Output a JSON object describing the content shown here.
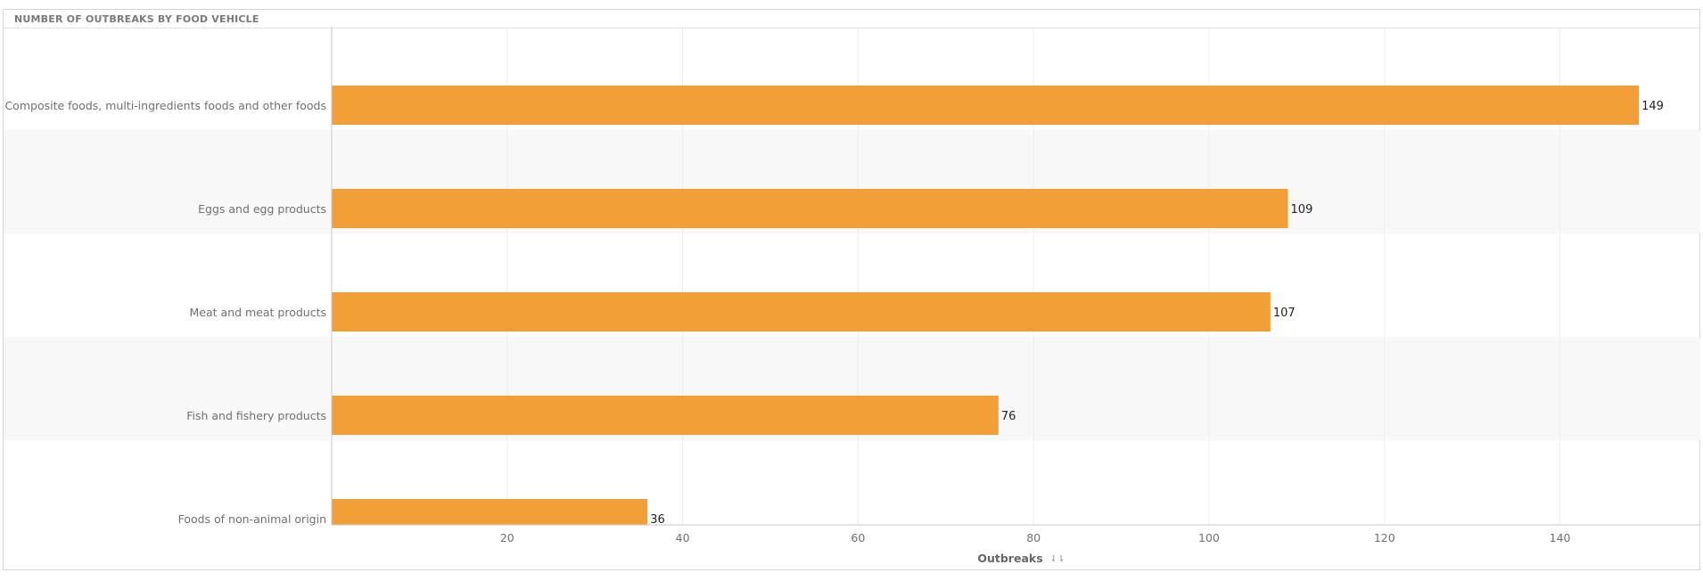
{
  "panel": {
    "title": "NUMBER OF OUTBREAKS BY FOOD VEHICLE"
  },
  "chart_data": {
    "type": "bar",
    "orientation": "horizontal",
    "categories": [
      "Composite foods, multi-ingredients foods and other foods",
      "Eggs and egg products",
      "Meat and meat products",
      "Fish and fishery products",
      "Foods of non-animal origin"
    ],
    "values": [
      149,
      109,
      107,
      76,
      36
    ],
    "value_labels": [
      "149",
      "109",
      "107",
      "76",
      "36"
    ],
    "xlabel": "Outbreaks",
    "ylabel": "",
    "xticks": [
      20,
      40,
      60,
      80,
      100,
      120,
      140
    ],
    "xlim": [
      0,
      156
    ],
    "grid": true,
    "bar_color": "#f29f38",
    "alt_row_color": "#f8f8f8",
    "sort_icon": "sort-descending-icon"
  }
}
